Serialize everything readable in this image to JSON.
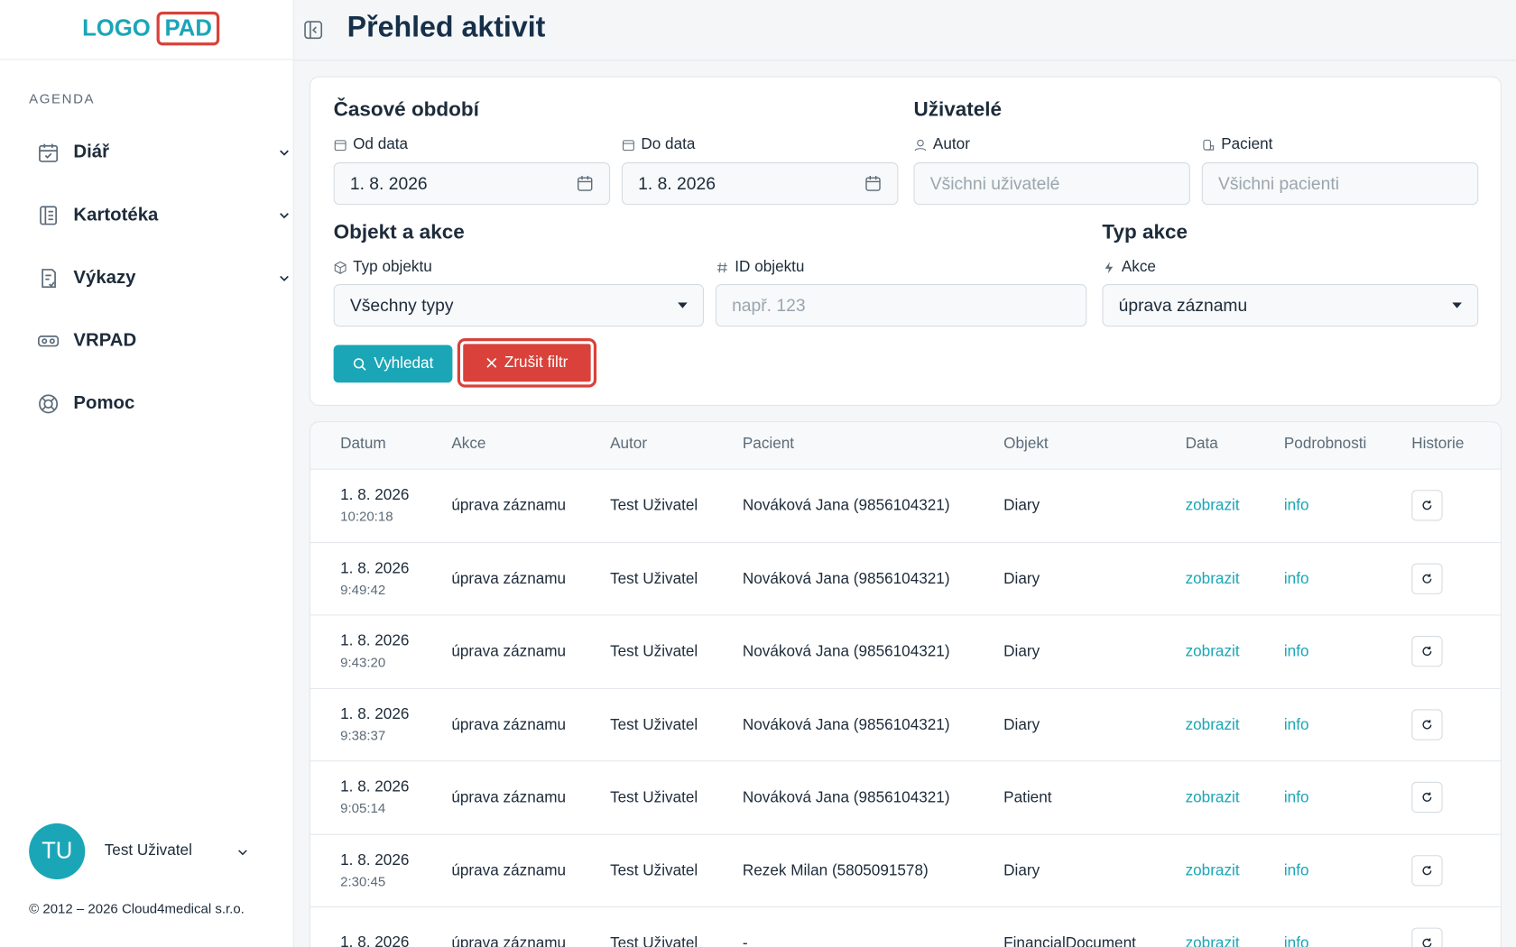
{
  "sidebar": {
    "logo_left": "LOGO",
    "logo_right": "PAD",
    "section": "AGENDA",
    "nav": [
      "Diář",
      "Kartotéka",
      "Výkazy",
      "VRPAD",
      "Pomoc"
    ],
    "user": {
      "initials": "TU",
      "name": "Test Uživatel"
    },
    "copyright": "© 2012 – 2026 Cloud4medical s.r.o."
  },
  "header": {
    "title": "Přehled aktivit"
  },
  "filters": {
    "time": {
      "title": "Časové období",
      "from_label": "Od data",
      "from_value": "1. 8. 2026",
      "to_label": "Do data",
      "to_value": "1. 8. 2026"
    },
    "users": {
      "title": "Uživatelé",
      "author_label": "Autor",
      "author_placeholder": "Všichni uživatelé",
      "patient_label": "Pacient",
      "patient_placeholder": "Všichni pacienti"
    },
    "object": {
      "title": "Objekt a akce",
      "type_label": "Typ objektu",
      "type_value": "Všechny typy",
      "id_label": "ID objektu",
      "id_placeholder": "např. 123"
    },
    "action": {
      "title": "Typ akce",
      "action_label": "Akce",
      "action_value": "úprava záznamu"
    },
    "search_button": "Vyhledat",
    "clear_button": "Zrušit filtr"
  },
  "table": {
    "columns": [
      "Datum",
      "Akce",
      "Autor",
      "Pacient",
      "Objekt",
      "Data",
      "Podrobnosti",
      "Historie"
    ],
    "rows": [
      {
        "date": "1. 8. 2026",
        "time": "10:20:18",
        "action": "úprava záznamu",
        "author": "Test Uživatel",
        "patient": "Nováková Jana (9856104321)",
        "object": "Diary",
        "data": "zobrazit",
        "details": "info"
      },
      {
        "date": "1. 8. 2026",
        "time": "9:49:42",
        "action": "úprava záznamu",
        "author": "Test Uživatel",
        "patient": "Nováková Jana (9856104321)",
        "object": "Diary",
        "data": "zobrazit",
        "details": "info"
      },
      {
        "date": "1. 8. 2026",
        "time": "9:43:20",
        "action": "úprava záznamu",
        "author": "Test Uživatel",
        "patient": "Nováková Jana (9856104321)",
        "object": "Diary",
        "data": "zobrazit",
        "details": "info"
      },
      {
        "date": "1. 8. 2026",
        "time": "9:38:37",
        "action": "úprava záznamu",
        "author": "Test Uživatel",
        "patient": "Nováková Jana (9856104321)",
        "object": "Diary",
        "data": "zobrazit",
        "details": "info"
      },
      {
        "date": "1. 8. 2026",
        "time": "9:05:14",
        "action": "úprava záznamu",
        "author": "Test Uživatel",
        "patient": "Nováková Jana (9856104321)",
        "object": "Patient",
        "data": "zobrazit",
        "details": "info"
      },
      {
        "date": "1. 8. 2026",
        "time": "2:30:45",
        "action": "úprava záznamu",
        "author": "Test Uživatel",
        "patient": "Rezek Milan (5805091578)",
        "object": "Diary",
        "data": "zobrazit",
        "details": "info"
      },
      {
        "date": "1. 8. 2026",
        "action": "úprava záznamu",
        "author": "Test Uživatel",
        "patient": "-",
        "object": "FinancialDocument",
        "data": "zobrazit",
        "details": "info"
      }
    ]
  }
}
